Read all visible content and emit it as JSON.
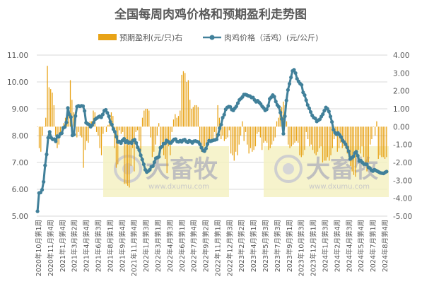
{
  "chart_data": {
    "type": "bar+line",
    "title": "全国每周肉鸡价格和预期盈利走势图",
    "watermark": {
      "brand": "大畜牧",
      "site": "www.dxumu.com"
    },
    "series": [
      {
        "name": "预期盈利(元/只)右",
        "type": "bar",
        "axis": "right",
        "color": "#e8a317",
        "values": [
          0.0,
          -1.2,
          -1.4,
          -0.5,
          0.0,
          0.5,
          3.4,
          2.2,
          2.1,
          1.9,
          1.2,
          -0.5,
          -1.2,
          -1.0,
          -0.4,
          -0.3,
          0.2,
          0.5,
          0.3,
          0.9,
          2.6,
          1.5,
          0.8,
          0.8,
          -0.6,
          -0.3,
          -0.5,
          -0.6,
          -2.3,
          -1.3,
          -0.8,
          -0.9,
          0.3,
          0.3,
          0.9,
          0.8,
          -0.3,
          -0.5,
          -1.2,
          -1.6,
          -0.4,
          0.0,
          -0.3,
          0.1,
          0.3,
          0.8,
          0.6,
          -1.2,
          -2.3,
          -2.1,
          -0.2,
          -0.4,
          -0.3,
          -3.2,
          -3.2,
          -3.3,
          -3.4,
          -2.2,
          -1.2,
          -2.5,
          -0.3,
          -0.2,
          -0.8,
          -1.4,
          0.5,
          0.9,
          1.0,
          1.0,
          0.9,
          -0.6,
          -1.7,
          -1.4,
          -1.0,
          -0.5,
          0.2,
          -1.2,
          -0.9,
          -1.6,
          -1.8,
          -2.6,
          -1.1,
          -1.6,
          -0.3,
          0.4,
          0.7,
          0.5,
          0.6,
          0.9,
          2.9,
          3.1,
          3.0,
          2.5,
          2.6,
          1.5,
          1.0,
          1.1,
          1.2,
          1.2,
          1.1,
          -0.9,
          -1.4,
          -1.3,
          -1.1,
          -1.2,
          -1.1,
          -0.8,
          -0.9,
          -0.7,
          -0.3,
          -0.8,
          1.2,
          0.5,
          -0.7,
          -0.5,
          -0.8,
          -0.7,
          -0.6,
          -0.2,
          -1.5,
          -1.6,
          -1.9,
          -1.4,
          -1.6,
          -1.0,
          -0.5,
          0.3,
          -0.8,
          -0.3,
          -1.0,
          -1.5,
          -1.2,
          -1.4,
          -1.3,
          -1.1,
          -0.4,
          -0.3,
          -0.6,
          -1.3,
          -0.9,
          -0.8,
          -0.9,
          -1.3,
          -1.2,
          -1.0,
          -0.8,
          -0.6,
          0.3,
          0.5,
          1.0,
          1.1,
          1.4,
          1.2,
          0.3,
          -1.0,
          -1.2,
          -1.1,
          -1.0,
          -0.9,
          -0.8,
          -0.9,
          -1.6,
          -1.7,
          -1.6,
          -1.3,
          -0.3,
          -0.7,
          -1.1,
          -1.0,
          -1.3,
          -1.5,
          -1.6,
          -1.4,
          -1.2,
          -1.1,
          -2.0,
          -1.9,
          -1.9,
          -1.7,
          -1.9,
          -1.6,
          -1.2,
          -0.7,
          -0.3,
          -1.4,
          -1.2,
          -0.9,
          -1.2,
          -1.1,
          -1.2,
          -1.5,
          -1.7,
          -2.2,
          -2.5,
          -2.7,
          -2.8,
          -1.5,
          -1.3,
          -1.5,
          -1.1,
          -1.7,
          -2.2,
          -2.5,
          -2.0,
          -1.0,
          -0.7,
          0.0,
          -0.5,
          0.3,
          -1.8,
          -1.6,
          -1.7,
          -1.7,
          -1.8,
          -1.7
        ]
      },
      {
        "name": "肉鸡价格（活鸡）(元/公斤)",
        "type": "line",
        "axis": "left",
        "color": "#41809a",
        "values": [
          5.18,
          5.86,
          5.88,
          5.98,
          6.28,
          6.89,
          7.3,
          7.92,
          8.14,
          7.92,
          7.86,
          7.87,
          7.79,
          7.98,
          7.96,
          8.06,
          8.09,
          8.29,
          8.32,
          8.49,
          9.03,
          8.79,
          8.69,
          8.01,
          8.04,
          8.73,
          9.08,
          9.11,
          9.09,
          9.11,
          9.1,
          8.92,
          8.48,
          8.44,
          8.41,
          8.33,
          8.39,
          8.49,
          8.61,
          8.65,
          8.69,
          8.72,
          8.68,
          8.79,
          8.93,
          8.96,
          8.85,
          8.72,
          8.51,
          8.41,
          8.24,
          8.14,
          7.96,
          7.76,
          7.78,
          7.72,
          7.82,
          7.88,
          7.75,
          7.8,
          7.73,
          7.75,
          7.72,
          7.82,
          7.85,
          7.73,
          7.56,
          7.46,
          7.27,
          7.11,
          6.93,
          6.73,
          6.64,
          6.68,
          6.73,
          6.84,
          6.86,
          7.01,
          7.16,
          7.18,
          7.21,
          7.55,
          7.59,
          7.7,
          7.71,
          7.82,
          7.78,
          7.73,
          7.73,
          7.8,
          7.86,
          7.87,
          7.78,
          7.77,
          7.81,
          7.77,
          7.83,
          7.85,
          7.78,
          7.75,
          7.81,
          7.78,
          7.73,
          7.79,
          7.8,
          7.78,
          7.76,
          7.68,
          7.55,
          7.45,
          7.42,
          7.52,
          7.69,
          7.81,
          7.79,
          7.81,
          7.83,
          7.84,
          7.86,
          8.03,
          8.28,
          8.41,
          8.67,
          8.78,
          8.98,
          9.05,
          9.08,
          9.07,
          8.97,
          8.94,
          9.02,
          9.09,
          9.21,
          9.33,
          9.38,
          9.44,
          9.53,
          9.53,
          9.51,
          9.48,
          9.47,
          9.42,
          9.42,
          9.33,
          9.26,
          9.3,
          9.24,
          9.18,
          9.09,
          9.03,
          8.94,
          8.98,
          9.11,
          9.37,
          9.43,
          9.51,
          9.45,
          9.27,
          9.14,
          9.07,
          8.86,
          8.62,
          8.07,
          8.72,
          9.31,
          9.7,
          9.93,
          10.17,
          10.41,
          10.45,
          10.33,
          10.12,
          10.02,
          9.94,
          9.89,
          9.61,
          9.51,
          9.32,
          9.14,
          9.02,
          8.88,
          8.75,
          8.67,
          8.64,
          8.53,
          8.57,
          8.61,
          8.71,
          8.8,
          8.93,
          9.05,
          9.0,
          8.9,
          8.71,
          8.51,
          8.22,
          8.11,
          8.05,
          8.1,
          8.03,
          7.95,
          7.82,
          7.76,
          7.68,
          7.56,
          7.42,
          7.13,
          7.17,
          7.22,
          7.35,
          7.4,
          7.25,
          7.05,
          7.07,
          7.0,
          6.94,
          6.94,
          6.93,
          6.82,
          6.79,
          6.71,
          6.68,
          6.73,
          6.7,
          6.67,
          6.64,
          6.61,
          6.6,
          6.59,
          6.63,
          6.66
        ]
      }
    ],
    "left_axis": {
      "min": 5.0,
      "max": 11.0,
      "step": 1.0,
      "ticks": [
        "5.00",
        "6.00",
        "7.00",
        "8.00",
        "9.00",
        "10.00",
        "11.00"
      ]
    },
    "right_axis": {
      "min": -5.0,
      "max": 4.0,
      "step": 1.0,
      "ticks": [
        "-5.00",
        "-4.00",
        "-3.00",
        "-2.00",
        "-1.00",
        "0.00",
        "1.00",
        "2.00",
        "3.00",
        "4.00"
      ]
    },
    "x_labels": [
      "2020年10月第1周",
      "2020年11月第4周",
      "2021年1月第4周",
      "2021年3月第2周",
      "2021年4月第4周",
      "2021年6月第3周",
      "2021年8月第1周",
      "2021年9月第4周",
      "2021年11月第4周",
      "2022年1月第3周",
      "2022年3月第1周",
      "2022年4月第3周",
      "2022年6月第1周",
      "2022年7月第4周",
      "2022年9月第2周",
      "2022年11月第1周",
      "2022年12月第3周",
      "2023年2月第2周",
      "2023年4月第1周",
      "2023年5月第3周",
      "2023年7月第3周",
      "2023年9月第1周",
      "2023年10月第3周",
      "2023年12月第1周",
      "2024年1月第3周",
      "2024年2月第4周",
      "2024年4月第3周",
      "2024年5月第4周",
      "2024年7月第1周",
      "2024年8月第4周"
    ],
    "legend_position": "top",
    "grid": true
  }
}
